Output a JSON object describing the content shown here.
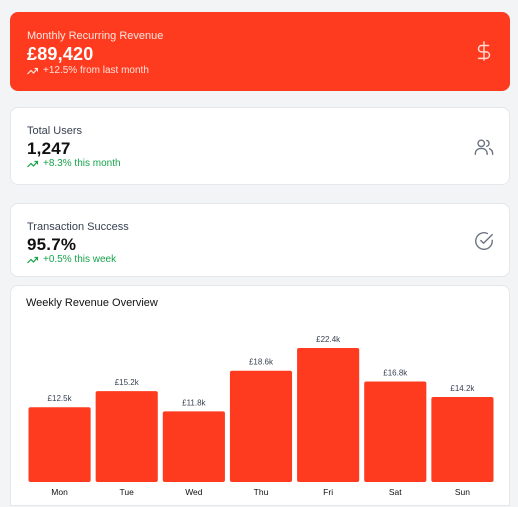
{
  "metrics": {
    "mrr": {
      "label": "Monthly Recurring Revenue",
      "value": "£89,420",
      "delta": "+12.5% from last month",
      "icon": "dollar-icon"
    },
    "users": {
      "label": "Total Users",
      "value": "1,247",
      "delta": "+8.3% this month",
      "icon": "users-icon"
    },
    "transactions": {
      "label": "Transaction Success",
      "value": "95.7%",
      "delta": "+0.5% this week",
      "icon": "check-circle-icon"
    }
  },
  "colors": {
    "accent": "#ff3b1f",
    "positive": "#16a34a"
  },
  "chart": {
    "title": "Weekly Revenue Overview"
  },
  "chart_data": {
    "type": "bar",
    "title": "Weekly Revenue Overview",
    "categories": [
      "Mon",
      "Tue",
      "Wed",
      "Thu",
      "Fri",
      "Sat",
      "Sun"
    ],
    "values": [
      12.5,
      15.2,
      11.8,
      18.6,
      22.4,
      16.8,
      14.2
    ],
    "data_labels": [
      "£12.5k",
      "£15.2k",
      "£11.8k",
      "£18.6k",
      "£22.4k",
      "£16.8k",
      "£14.2k"
    ],
    "unit": "£k",
    "xlabel": "",
    "ylabel": "",
    "ylim": [
      0,
      22.4
    ],
    "grid": false,
    "legend": "none",
    "bar_color": "#ff3b1f"
  }
}
